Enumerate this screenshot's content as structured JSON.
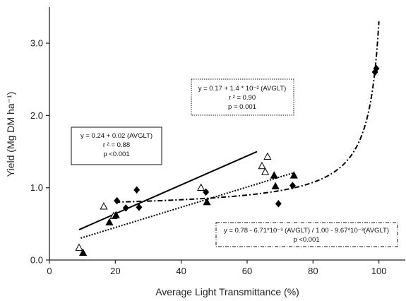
{
  "chart_data": {
    "type": "scatter",
    "xlabel": "Average Light Transmittance (%)",
    "ylabel": "Yield (Mg DM ha⁻¹)",
    "xlim": [
      0,
      108
    ],
    "ylim": [
      0,
      3.5
    ],
    "xticks": [
      0,
      20,
      40,
      60,
      80,
      100
    ],
    "yticks": [
      0.0,
      1.0,
      2.0,
      3.0
    ],
    "xtick_labels": [
      "0",
      "20",
      "40",
      "60",
      "80",
      "100"
    ],
    "ytick_labels": [
      "0.0",
      "1.0",
      "2.0",
      "3.0"
    ],
    "grid": false,
    "series": [
      {
        "marker": "open-triangle",
        "points": [
          [
            9,
            0.17
          ],
          [
            16.5,
            0.74
          ],
          [
            19.5,
            0.61
          ],
          [
            46,
            1.0
          ],
          [
            64.5,
            1.3
          ],
          [
            65.5,
            1.22
          ],
          [
            66.2,
            1.43
          ]
        ]
      },
      {
        "marker": "filled-triangle",
        "points": [
          [
            10.2,
            0.1
          ],
          [
            18.2,
            0.52
          ],
          [
            20.2,
            0.62
          ],
          [
            47.8,
            0.8
          ],
          [
            68.2,
            1.17
          ],
          [
            68.6,
            1.02
          ],
          [
            74.2,
            1.17
          ]
        ]
      },
      {
        "marker": "filled-diamond",
        "points": [
          [
            20.5,
            0.82
          ],
          [
            23.2,
            0.72
          ],
          [
            26.5,
            0.97
          ],
          [
            27.2,
            0.73
          ],
          [
            47.5,
            0.94
          ],
          [
            69.5,
            0.78
          ],
          [
            73.8,
            1.03
          ],
          [
            98.8,
            2.6
          ],
          [
            99.2,
            2.65
          ]
        ]
      }
    ],
    "fits": [
      {
        "style": "solid",
        "slope": 0.02,
        "intercept": 0.24,
        "xrange": [
          9,
          63
        ],
        "label_lines": [
          "y = 0.24 + 0.02 (AVGLT)",
          "r ² = 0.88",
          "p <0.001"
        ]
      },
      {
        "style": "dotted",
        "slope": 0.014,
        "intercept": 0.17,
        "xrange": [
          9.5,
          74
        ],
        "label_lines": [
          "y = 0.17 + 1.4 * 10⁻² (AVGLT)",
          "r ² = 0.90",
          "p = 0.001"
        ]
      },
      {
        "style": "dash-dot",
        "a": 0.78,
        "b": -0.00671,
        "c": 1.0,
        "d": -0.00967,
        "xrange": [
          20,
          100
        ],
        "label_lines": [
          "y = 0.78 - 6.71*10⁻³ (AVGLT) / 1.00 - 9.67*10⁻³(AVGLT)",
          "p <0.001"
        ]
      }
    ]
  }
}
